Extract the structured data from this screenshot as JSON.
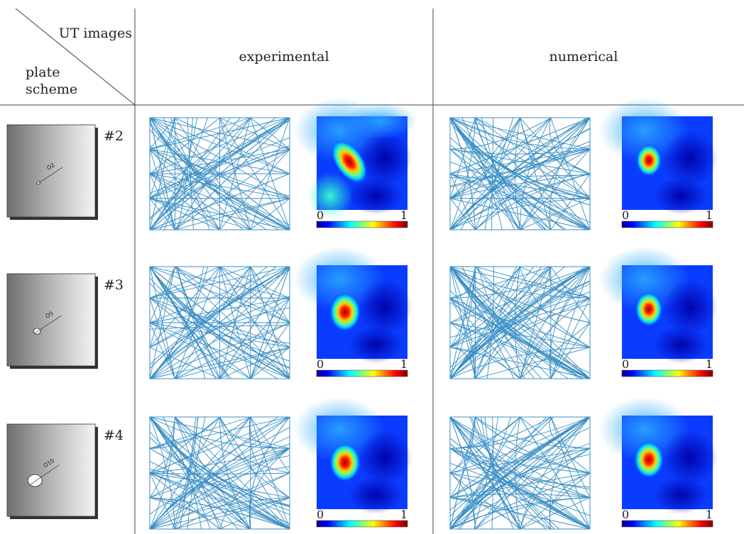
{
  "header": {
    "corner_top": "UT images",
    "corner_bottom": [
      "plate",
      "scheme"
    ],
    "col_experimental": "experimental",
    "col_numerical": "numerical"
  },
  "rows": [
    {
      "label": "#2",
      "hole_label": "O2",
      "hole_size": 2
    },
    {
      "label": "#3",
      "hole_label": "O5",
      "hole_size": 5
    },
    {
      "label": "#4",
      "hole_label": "O10",
      "hole_size": 10
    }
  ],
  "colorbar": {
    "min": "0",
    "max": "1"
  },
  "colors": {
    "ray": "#3a8fc4",
    "grid": "#444444"
  }
}
